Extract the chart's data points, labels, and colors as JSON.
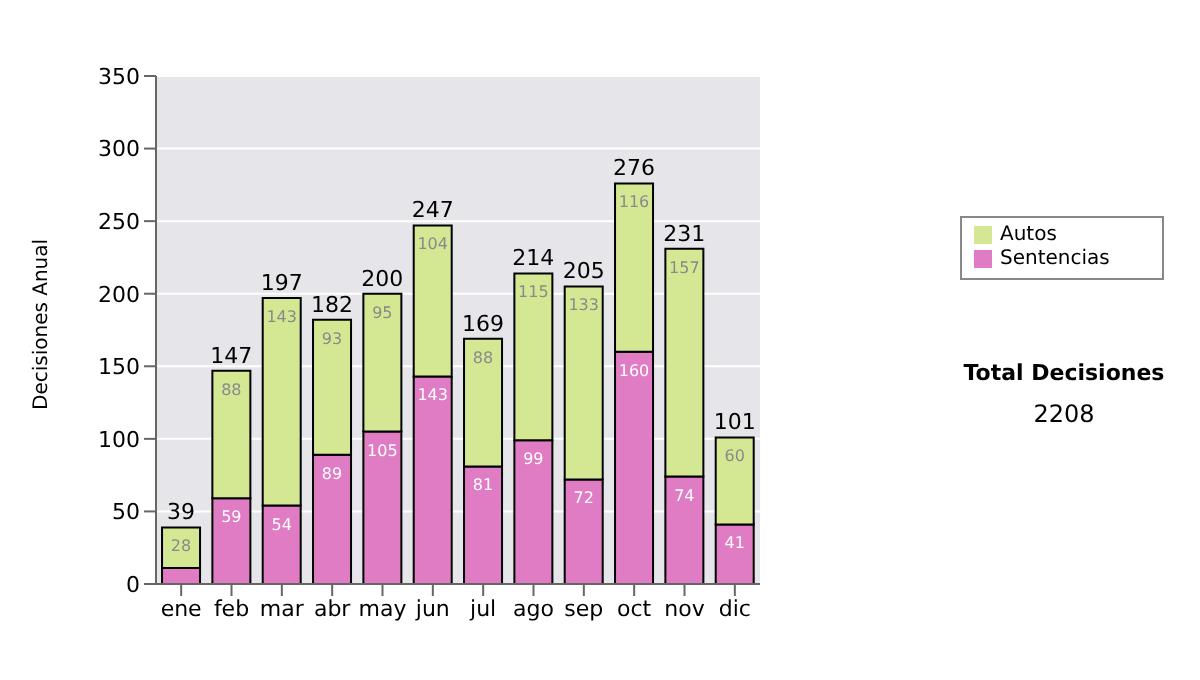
{
  "chart_data": {
    "type": "bar",
    "stacked": true,
    "ylabel": "Decisiones Anual",
    "categories": [
      "ene",
      "feb",
      "mar",
      "abr",
      "may",
      "jun",
      "jul",
      "ago",
      "sep",
      "oct",
      "nov",
      "dic"
    ],
    "series": [
      {
        "name": "Sentencias",
        "color": "#e07cc4",
        "values": [
          11,
          59,
          54,
          89,
          105,
          143,
          81,
          99,
          72,
          160,
          74,
          41
        ],
        "value_labels": [
          null,
          "59",
          "54",
          "89",
          "105",
          "143",
          "81",
          "99",
          "72",
          "160",
          "74",
          "41"
        ]
      },
      {
        "name": "Autos",
        "color": "#d4e894",
        "values": [
          28,
          88,
          143,
          93,
          95,
          104,
          88,
          115,
          133,
          116,
          157,
          60
        ],
        "value_labels": [
          "28",
          "88",
          "143",
          "93",
          "95",
          "104",
          "88",
          "115",
          "133",
          "116",
          "157",
          "60"
        ]
      }
    ],
    "totals": [
      "39",
      "147",
      "197",
      "182",
      "200",
      "247",
      "169",
      "214",
      "205",
      "276",
      "231",
      "101"
    ],
    "ylim": [
      0,
      350
    ],
    "yticks": [
      0,
      50,
      100,
      150,
      200,
      250,
      300,
      350
    ],
    "grid": "y",
    "legend": "right",
    "annotations": [
      "Total Decisiones",
      "2208"
    ]
  }
}
